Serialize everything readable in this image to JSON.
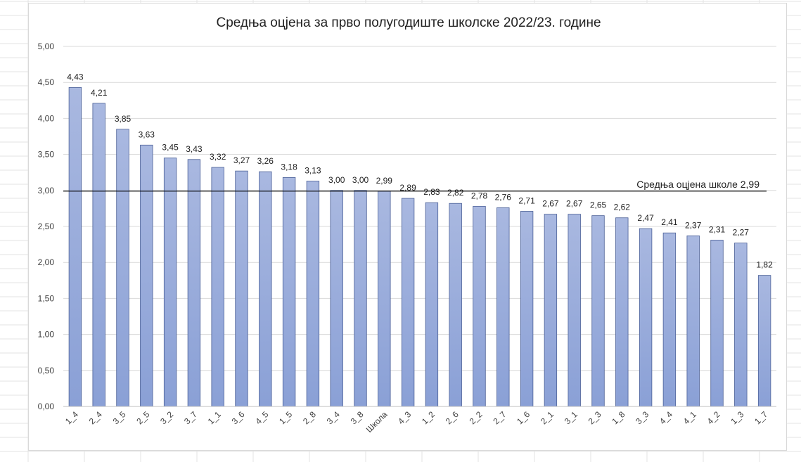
{
  "chart_data": {
    "type": "bar",
    "title": "Средња оцјена за прво полугодиште школске 2022/23. године",
    "xlabel": "",
    "ylabel": "",
    "ylim": [
      0,
      5
    ],
    "yticks": [
      "0,00",
      "0,50",
      "1,00",
      "1,50",
      "2,00",
      "2,50",
      "3,00",
      "3,50",
      "4,00",
      "4,50",
      "5,00"
    ],
    "grid": true,
    "categories": [
      "1_4",
      "2_4",
      "3_5",
      "2_5",
      "3_2",
      "3_7",
      "1_1",
      "3_6",
      "4_5",
      "1_5",
      "2_8",
      "3_4",
      "3_8",
      "Школа",
      "4_3",
      "1_2",
      "2_6",
      "2_2",
      "2_7",
      "1_6",
      "2_1",
      "3_1",
      "2_3",
      "1_8",
      "3_3",
      "4_4",
      "4_1",
      "4_2",
      "1_3",
      "1_7"
    ],
    "values": [
      4.43,
      4.21,
      3.85,
      3.63,
      3.45,
      3.43,
      3.32,
      3.27,
      3.26,
      3.18,
      3.13,
      3.0,
      3.0,
      2.99,
      2.89,
      2.83,
      2.82,
      2.78,
      2.76,
      2.71,
      2.67,
      2.67,
      2.65,
      2.62,
      2.47,
      2.41,
      2.37,
      2.31,
      2.27,
      1.82
    ],
    "data_labels": [
      "4,43",
      "4,21",
      "3,85",
      "3,63",
      "3,45",
      "3,43",
      "3,32",
      "3,27",
      "3,26",
      "3,18",
      "3,13",
      "3,00",
      "3,00",
      "2,99",
      "2,89",
      "2,83",
      "2,82",
      "2,78",
      "2,76",
      "2,71",
      "2,67",
      "2,67",
      "2,65",
      "2,62",
      "2,47",
      "2,41",
      "2,37",
      "2,31",
      "2,27",
      "1,82"
    ],
    "reference_line": {
      "value": 2.99,
      "label": "Средња оцјена школе 2,99"
    },
    "colors": {
      "bar_top": "#a9b8e0",
      "bar_bottom": "#8aa0d6",
      "bar_border": "#4a5f96",
      "gridline": "#d9d9d9",
      "reference": "#000000"
    }
  }
}
